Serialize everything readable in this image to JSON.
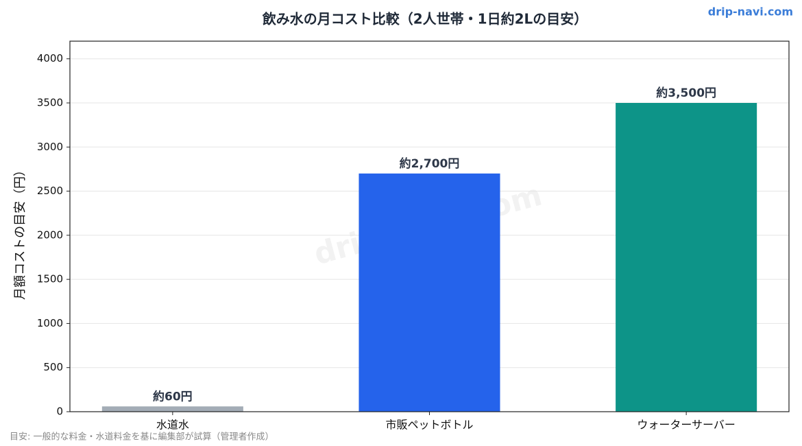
{
  "chart_data": {
    "type": "bar",
    "title": "飲み水の月コスト比較（2人世帯・1日約2Lの目安）",
    "y_label": "月額コストの目安（円）",
    "categories": [
      "水道水",
      "市販ペットボトル",
      "ウォーターサーバー"
    ],
    "values": [
      60,
      2700,
      3500
    ],
    "value_labels": [
      "約60円",
      "約2,700円",
      "約3,500円"
    ],
    "colors": [
      "#a3acb6",
      "#2563eb",
      "#0d9488"
    ],
    "ylim": [
      0,
      4200
    ],
    "yticks": [
      0,
      500,
      1000,
      1500,
      2000,
      2500,
      3000,
      3500,
      4000
    ],
    "grid": true,
    "watermark": "drip-navi.com",
    "brand": "drip-navi.com",
    "footnote": "目安: 一般的な料金・水道料金を基に編集部が試算（管理者作成）"
  }
}
